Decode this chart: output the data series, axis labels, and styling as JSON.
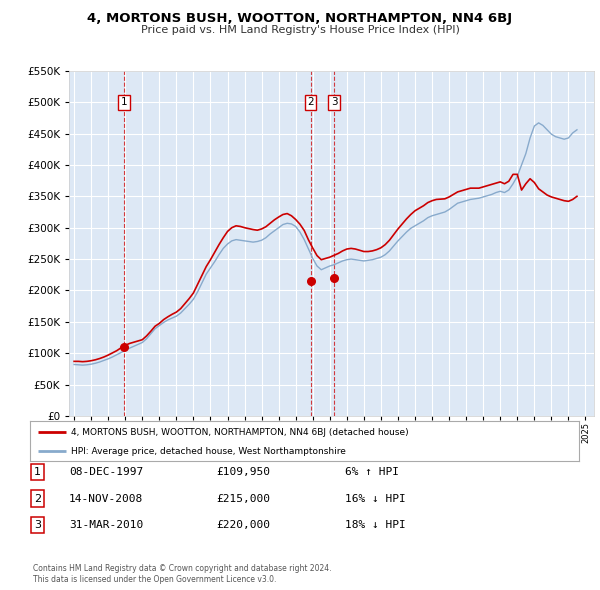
{
  "title": "4, MORTONS BUSH, WOOTTON, NORTHAMPTON, NN4 6BJ",
  "subtitle": "Price paid vs. HM Land Registry's House Price Index (HPI)",
  "legend_line1": "4, MORTONS BUSH, WOOTTON, NORTHAMPTON, NN4 6BJ (detached house)",
  "legend_line2": "HPI: Average price, detached house, West Northamptonshire",
  "footer1": "Contains HM Land Registry data © Crown copyright and database right 2024.",
  "footer2": "This data is licensed under the Open Government Licence v3.0.",
  "transactions": [
    {
      "num": 1,
      "date": "08-DEC-1997",
      "price": "£109,950",
      "pct": "6% ↑ HPI",
      "year": 1997.93,
      "value": 109950
    },
    {
      "num": 2,
      "date": "14-NOV-2008",
      "price": "£215,000",
      "pct": "16% ↓ HPI",
      "year": 2008.87,
      "value": 215000
    },
    {
      "num": 3,
      "date": "31-MAR-2010",
      "price": "£220,000",
      "pct": "18% ↓ HPI",
      "year": 2010.25,
      "value": 220000
    }
  ],
  "red_line_color": "#cc0000",
  "blue_line_color": "#88aacc",
  "background_color": "#dde8f5",
  "grid_color": "#ffffff",
  "ylim": [
    0,
    550000
  ],
  "xlim_start": 1994.7,
  "xlim_end": 2025.5,
  "hpi_data": {
    "years": [
      1995.0,
      1995.25,
      1995.5,
      1995.75,
      1996.0,
      1996.25,
      1996.5,
      1996.75,
      1997.0,
      1997.25,
      1997.5,
      1997.75,
      1998.0,
      1998.25,
      1998.5,
      1998.75,
      1999.0,
      1999.25,
      1999.5,
      1999.75,
      2000.0,
      2000.25,
      2000.5,
      2000.75,
      2001.0,
      2001.25,
      2001.5,
      2001.75,
      2002.0,
      2002.25,
      2002.5,
      2002.75,
      2003.0,
      2003.25,
      2003.5,
      2003.75,
      2004.0,
      2004.25,
      2004.5,
      2004.75,
      2005.0,
      2005.25,
      2005.5,
      2005.75,
      2006.0,
      2006.25,
      2006.5,
      2006.75,
      2007.0,
      2007.25,
      2007.5,
      2007.75,
      2008.0,
      2008.25,
      2008.5,
      2008.75,
      2009.0,
      2009.25,
      2009.5,
      2009.75,
      2010.0,
      2010.25,
      2010.5,
      2010.75,
      2011.0,
      2011.25,
      2011.5,
      2011.75,
      2012.0,
      2012.25,
      2012.5,
      2012.75,
      2013.0,
      2013.25,
      2013.5,
      2013.75,
      2014.0,
      2014.25,
      2014.5,
      2014.75,
      2015.0,
      2015.25,
      2015.5,
      2015.75,
      2016.0,
      2016.25,
      2016.5,
      2016.75,
      2017.0,
      2017.25,
      2017.5,
      2017.75,
      2018.0,
      2018.25,
      2018.5,
      2018.75,
      2019.0,
      2019.25,
      2019.5,
      2019.75,
      2020.0,
      2020.25,
      2020.5,
      2020.75,
      2021.0,
      2021.25,
      2021.5,
      2021.75,
      2022.0,
      2022.25,
      2022.5,
      2022.75,
      2023.0,
      2023.25,
      2023.5,
      2023.75,
      2024.0,
      2024.25,
      2024.5
    ],
    "values": [
      82000,
      81500,
      81000,
      81500,
      82500,
      84000,
      86000,
      88500,
      91000,
      94000,
      97500,
      101000,
      105000,
      108000,
      111000,
      114000,
      117000,
      123000,
      131000,
      139000,
      144000,
      149000,
      153000,
      156000,
      159000,
      164000,
      171000,
      178000,
      186000,
      198000,
      212000,
      226000,
      236000,
      246000,
      257000,
      267000,
      274000,
      279000,
      281000,
      280000,
      279000,
      278000,
      277000,
      278000,
      280000,
      284000,
      290000,
      295000,
      300000,
      305000,
      307000,
      306000,
      302000,
      293000,
      281000,
      266000,
      251000,
      239000,
      233000,
      236000,
      239000,
      241000,
      244000,
      247000,
      249000,
      250000,
      249000,
      248000,
      247000,
      248000,
      249000,
      251000,
      253000,
      257000,
      263000,
      271000,
      279000,
      286000,
      293000,
      299000,
      303000,
      307000,
      311000,
      316000,
      319000,
      321000,
      323000,
      325000,
      329000,
      334000,
      339000,
      341000,
      343000,
      345000,
      346000,
      347000,
      349000,
      351000,
      353000,
      356000,
      358000,
      356000,
      360000,
      370000,
      382000,
      400000,
      418000,
      443000,
      462000,
      467000,
      463000,
      456000,
      449000,
      445000,
      443000,
      441000,
      443000,
      451000,
      456000
    ]
  },
  "price_paid_data": {
    "years": [
      1995.0,
      1995.25,
      1995.5,
      1995.75,
      1996.0,
      1996.25,
      1996.5,
      1996.75,
      1997.0,
      1997.25,
      1997.5,
      1997.75,
      1998.0,
      1998.25,
      1998.5,
      1998.75,
      1999.0,
      1999.25,
      1999.5,
      1999.75,
      2000.0,
      2000.25,
      2000.5,
      2000.75,
      2001.0,
      2001.25,
      2001.5,
      2001.75,
      2002.0,
      2002.25,
      2002.5,
      2002.75,
      2003.0,
      2003.25,
      2003.5,
      2003.75,
      2004.0,
      2004.25,
      2004.5,
      2004.75,
      2005.0,
      2005.25,
      2005.5,
      2005.75,
      2006.0,
      2006.25,
      2006.5,
      2006.75,
      2007.0,
      2007.25,
      2007.5,
      2007.75,
      2008.0,
      2008.25,
      2008.5,
      2008.75,
      2009.0,
      2009.25,
      2009.5,
      2009.75,
      2010.0,
      2010.25,
      2010.5,
      2010.75,
      2011.0,
      2011.25,
      2011.5,
      2011.75,
      2012.0,
      2012.25,
      2012.5,
      2012.75,
      2013.0,
      2013.25,
      2013.5,
      2013.75,
      2014.0,
      2014.25,
      2014.5,
      2014.75,
      2015.0,
      2015.25,
      2015.5,
      2015.75,
      2016.0,
      2016.25,
      2016.5,
      2016.75,
      2017.0,
      2017.25,
      2017.5,
      2017.75,
      2018.0,
      2018.25,
      2018.5,
      2018.75,
      2019.0,
      2019.25,
      2019.5,
      2019.75,
      2020.0,
      2020.25,
      2020.5,
      2020.75,
      2021.0,
      2021.25,
      2021.5,
      2021.75,
      2022.0,
      2022.25,
      2022.5,
      2022.75,
      2023.0,
      2023.25,
      2023.5,
      2023.75,
      2024.0,
      2024.25,
      2024.5
    ],
    "values": [
      87000,
      87000,
      86500,
      87000,
      88000,
      89500,
      91500,
      94000,
      97000,
      100500,
      104000,
      108500,
      112500,
      115500,
      117500,
      119500,
      121500,
      127500,
      135000,
      143000,
      147500,
      153500,
      158000,
      162000,
      165500,
      171000,
      179000,
      187000,
      196000,
      210000,
      224000,
      238000,
      249000,
      261000,
      273000,
      284000,
      294000,
      300000,
      303000,
      302000,
      300000,
      298500,
      297000,
      296000,
      298000,
      301500,
      307000,
      312500,
      317000,
      321000,
      322500,
      319000,
      313000,
      305500,
      295500,
      280500,
      267500,
      255500,
      249000,
      251000,
      253000,
      256000,
      259000,
      263000,
      266000,
      267000,
      266000,
      264000,
      262000,
      262000,
      263000,
      265000,
      268000,
      273000,
      280000,
      289000,
      298000,
      306000,
      314000,
      321000,
      327000,
      331000,
      335000,
      340000,
      343000,
      345000,
      345500,
      346000,
      349000,
      353000,
      357000,
      359000,
      361000,
      363000,
      363000,
      363000,
      365000,
      367000,
      369000,
      371000,
      373000,
      370000,
      374000,
      385000,
      385000,
      360000,
      370000,
      378000,
      372000,
      362000,
      357000,
      352000,
      349000,
      347000,
      345000,
      343000,
      342000,
      345000,
      350000
    ]
  }
}
